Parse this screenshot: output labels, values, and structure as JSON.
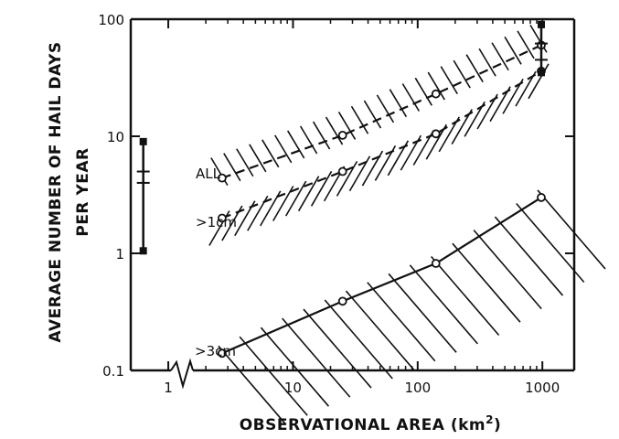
{
  "chart_data": {
    "type": "line",
    "xlabel": "OBSERVATIONAL AREA",
    "xlabel_unit": "(km",
    "xlabel_unit_sup": "2",
    "xlabel_unit_close": ")",
    "ylabel_line1": "AVERAGE NUMBER OF HAIL DAYS",
    "ylabel_line2": "PER YEAR",
    "x_scale": "log",
    "y_scale": "log",
    "xlim": [
      0.5,
      1800
    ],
    "ylim": [
      0.1,
      100
    ],
    "x_ticks": [
      {
        "value": 1,
        "label": "1"
      },
      {
        "value": 10,
        "label": "10"
      },
      {
        "value": 100,
        "label": "100"
      },
      {
        "value": 1000,
        "label": "1000"
      }
    ],
    "y_ticks": [
      {
        "value": 0.1,
        "label": "0.1"
      },
      {
        "value": 1,
        "label": "1"
      },
      {
        "value": 10,
        "label": "10"
      },
      {
        "value": 100,
        "label": "100"
      }
    ],
    "x_axis_break": true,
    "grid": false,
    "series": [
      {
        "name": "ALL",
        "style": "dashed",
        "points": [
          [
            2.7,
            4.4
          ],
          [
            25,
            10.2
          ],
          [
            140,
            23
          ],
          [
            980,
            60
          ]
        ]
      },
      {
        "name": ">1cm",
        "style": "dashed",
        "points": [
          [
            2.7,
            2.0
          ],
          [
            25,
            5.0
          ],
          [
            140,
            10.5
          ],
          [
            980,
            36
          ]
        ]
      },
      {
        "name": ">3cm",
        "style": "solid",
        "points": [
          [
            2.7,
            0.14
          ],
          [
            25,
            0.39
          ],
          [
            140,
            0.82
          ],
          [
            980,
            3.0
          ]
        ]
      }
    ],
    "range_bars": [
      {
        "x": 0.63,
        "low": 1.05,
        "high": 9.0,
        "markers": [
          5.0,
          4.0
        ]
      },
      {
        "x": 980,
        "low": 35,
        "high": 90,
        "markers": [
          62,
          45
        ]
      }
    ]
  }
}
